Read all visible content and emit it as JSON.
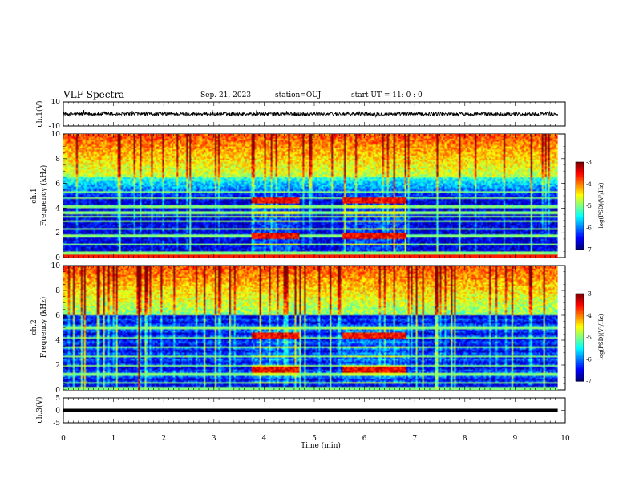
{
  "header": {
    "title": "VLF Spectra",
    "date": "Sep. 21, 2023",
    "station": "station=OUJ",
    "start": "start  UT =  11: 0  : 0"
  },
  "chart_data": [
    {
      "type": "line",
      "panel": "ch1-waveform",
      "ylabel": "ch.1(V)",
      "ylim": [
        -10,
        10
      ],
      "yticks": [
        "10",
        "-10"
      ],
      "xlim": [
        0,
        10
      ],
      "baseline": 0,
      "amplitude": 1.5,
      "color": "#000000"
    },
    {
      "type": "heatmap",
      "panel": "ch1-spectrogram",
      "ylabel": "ch.1\nFrequency (kHz)",
      "ylabel_line1": "ch.1",
      "ylabel_line2": "Frequency (kHz)",
      "ylim": [
        0,
        10
      ],
      "yticks": [
        "0",
        "2",
        "4",
        "6",
        "8",
        "10"
      ],
      "xlim": [
        0,
        9.85
      ],
      "colorbar": {
        "label": "log(PSD)(V²/Hz)",
        "ticks": [
          "-3",
          "-4",
          "-5",
          "-6",
          "-7"
        ],
        "range": [
          -7,
          -3
        ]
      },
      "events": [
        {
          "t_start": 3.75,
          "t_end": 4.7,
          "f_bands": [
            4.6,
            1.7
          ]
        },
        {
          "t_start": 5.55,
          "t_end": 6.85,
          "f_bands": [
            4.6,
            1.7
          ]
        }
      ],
      "lines_khz": [
        0.3,
        1.0,
        1.7,
        2.3,
        2.9,
        3.3,
        3.6,
        4.1,
        4.8,
        5.3
      ]
    },
    {
      "type": "heatmap",
      "panel": "ch2-spectrogram",
      "ylabel_line1": "ch.2",
      "ylabel_line2": "Frequency (kHz)",
      "ylim": [
        0,
        10
      ],
      "yticks": [
        "0",
        "2",
        "4",
        "6",
        "8",
        "10"
      ],
      "xlim": [
        0,
        9.85
      ],
      "colorbar": {
        "label": "log(PSD)(V²/Hz)",
        "ticks": [
          "-3",
          "-4",
          "-5",
          "-6",
          "-7"
        ],
        "range": [
          -7,
          -3
        ]
      },
      "events": [
        {
          "t_start": 3.75,
          "t_end": 4.7,
          "f_bands": [
            4.4,
            1.6
          ]
        },
        {
          "t_start": 5.55,
          "t_end": 6.85,
          "f_bands": [
            4.4,
            1.6
          ]
        }
      ],
      "lines_khz": [
        0.5,
        1.2,
        1.9,
        2.7,
        3.4,
        4.2,
        5.0
      ]
    },
    {
      "type": "line",
      "panel": "ch3-waveform",
      "ylabel": "ch.3(V)",
      "ylim": [
        -5,
        5
      ],
      "yticks": [
        "5",
        "0",
        "-5"
      ],
      "xlim": [
        0,
        10
      ],
      "baseline": 0,
      "color": "#000000"
    }
  ],
  "xaxis": {
    "label": "Time (min)",
    "ticks": [
      "0",
      "1",
      "2",
      "3",
      "4",
      "5",
      "6",
      "7",
      "8",
      "9",
      "10"
    ],
    "range": [
      0,
      10
    ]
  }
}
